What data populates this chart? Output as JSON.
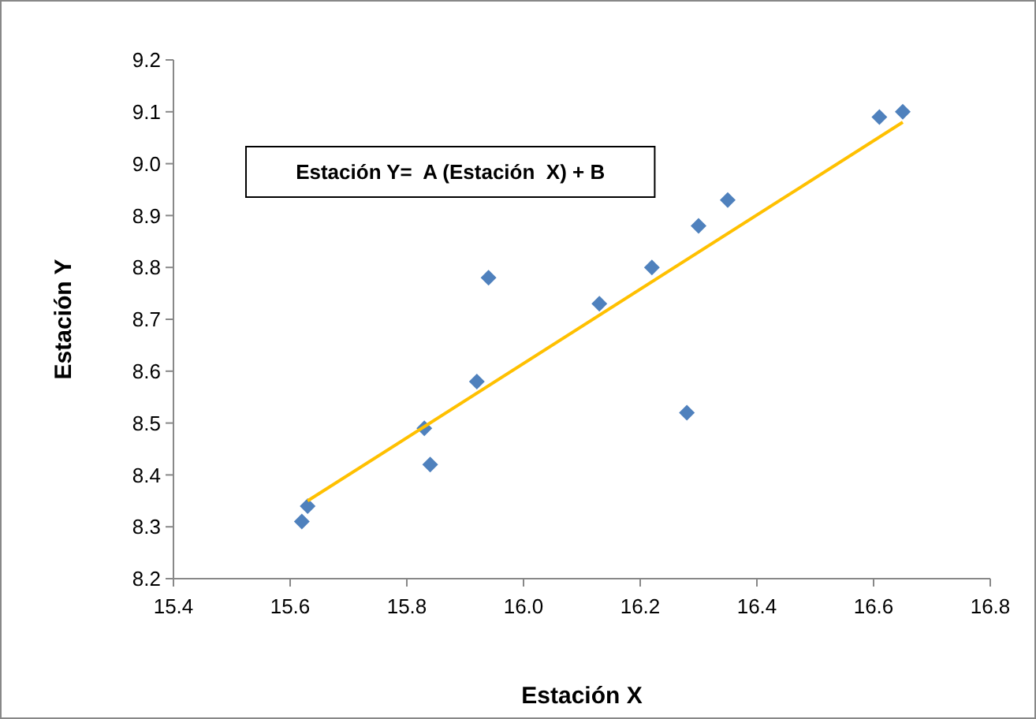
{
  "chart_data": {
    "type": "scatter",
    "xlabel": "Estación X",
    "ylabel": "Estación Y",
    "annotations": [
      "Estación Y=  A (Estación  X) + B"
    ],
    "xlim": [
      15.4,
      16.8
    ],
    "ylim": [
      8.2,
      9.2
    ],
    "xticks": [
      {
        "value": 15.4,
        "label": "15.4"
      },
      {
        "value": 15.6,
        "label": "15.6"
      },
      {
        "value": 15.8,
        "label": "15.8"
      },
      {
        "value": 16.0,
        "label": "16.0"
      },
      {
        "value": 16.2,
        "label": "16.2"
      },
      {
        "value": 16.4,
        "label": "16.4"
      },
      {
        "value": 16.6,
        "label": "16.6"
      },
      {
        "value": 16.8,
        "label": "16.8"
      }
    ],
    "yticks": [
      {
        "value": 8.2,
        "label": "8.2"
      },
      {
        "value": 8.3,
        "label": "8.3"
      },
      {
        "value": 8.4,
        "label": "8.4"
      },
      {
        "value": 8.5,
        "label": "8.5"
      },
      {
        "value": 8.6,
        "label": "8.6"
      },
      {
        "value": 8.7,
        "label": "8.7"
      },
      {
        "value": 8.8,
        "label": "8.8"
      },
      {
        "value": 8.9,
        "label": "8.9"
      },
      {
        "value": 9.0,
        "label": "9.0"
      },
      {
        "value": 9.1,
        "label": "9.1"
      },
      {
        "value": 9.2,
        "label": "9.2"
      }
    ],
    "grid": false,
    "series": [
      {
        "marker": "diamond",
        "color": "#4f81bd",
        "x": [
          15.62,
          15.63,
          15.83,
          15.84,
          15.92,
          15.94,
          16.13,
          16.22,
          16.28,
          16.3,
          16.35,
          16.61,
          16.65
        ],
        "values": [
          8.31,
          8.34,
          8.49,
          8.42,
          8.58,
          8.78,
          8.73,
          8.8,
          8.52,
          8.88,
          8.93,
          9.09,
          9.1
        ]
      },
      {
        "type": "line",
        "marker": "none",
        "color": "#ffc000",
        "x": [
          15.63,
          16.65
        ],
        "values": [
          8.35,
          9.08
        ]
      }
    ]
  }
}
